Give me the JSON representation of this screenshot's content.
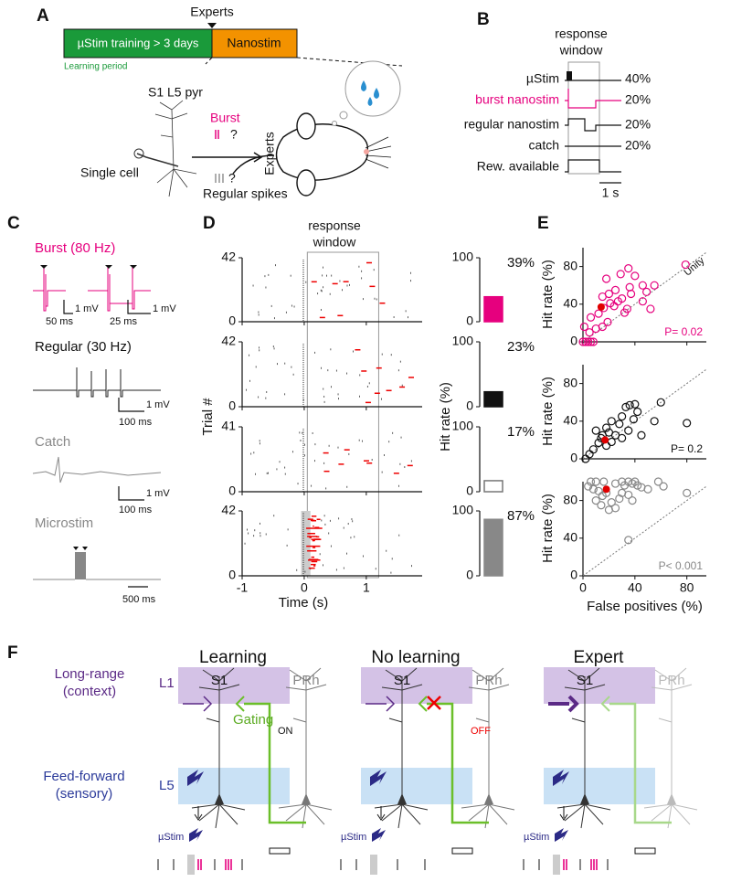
{
  "panels": [
    "A",
    "B",
    "C",
    "D",
    "E",
    "F"
  ],
  "panel_a": {
    "experts_top": "Experts",
    "training": "µStim training > 3 days",
    "nanostim": "Nanostim",
    "learning_period": "Learning period",
    "cell": "S1 L5 pyr",
    "single_cell": "Single cell",
    "burst": "Burst",
    "burst_q": "?",
    "experts_side": "Experts",
    "regular_q": "?",
    "regular": "Regular spikes"
  },
  "panel_b": {
    "title": [
      "response",
      "window"
    ],
    "rows": [
      {
        "label": "µStim",
        "pct": "40%"
      },
      {
        "label": "burst nanostim",
        "pct": "20%"
      },
      {
        "label": "regular nanostim",
        "pct": "20%"
      },
      {
        "label": "catch",
        "pct": "20%"
      },
      {
        "label": "Rew. available"
      }
    ],
    "scale": "1 s"
  },
  "panel_c": {
    "burst": "Burst (80 Hz)",
    "burst_v": "1 mV",
    "burst_t": "50 ms",
    "burst_t2": "25 ms",
    "burst_v2": "1 mV",
    "regular": "Regular (30 Hz)",
    "regular_v": "1 mV",
    "regular_t": "100 ms",
    "catch": "Catch",
    "catch_v": "1 mV",
    "catch_t": "100 ms",
    "microstim": "Microstim",
    "microstim_t": "500 ms"
  },
  "panel_d": {
    "window": [
      "response",
      "window"
    ],
    "ylabel": "Trial #",
    "xlabel": "Time (s)",
    "xlim": [
      -1,
      1.9
    ],
    "xticks": [
      -1,
      0,
      1
    ],
    "rasters": [
      {
        "yticks": [
          0,
          42
        ]
      },
      {
        "yticks": [
          0,
          42
        ]
      },
      {
        "yticks": [
          0,
          41
        ]
      },
      {
        "yticks": [
          0,
          42
        ]
      }
    ],
    "bar_ylabel": "Hit rate (%)"
  },
  "chart_data": [
    {
      "type": "bar",
      "values": [
        39
      ],
      "value_labels": [
        "39%"
      ],
      "color": "#e6007e",
      "filled": true,
      "ylim": [
        0,
        100
      ],
      "yticks": [
        0,
        100
      ]
    },
    {
      "type": "bar",
      "values": [
        23
      ],
      "value_labels": [
        "23%"
      ],
      "color": "#111111",
      "filled": true,
      "ylim": [
        0,
        100
      ],
      "yticks": [
        0,
        100
      ]
    },
    {
      "type": "bar",
      "values": [
        17
      ],
      "value_labels": [
        "17%"
      ],
      "color": "#777777",
      "filled": false,
      "ylim": [
        0,
        100
      ],
      "yticks": [
        0,
        100
      ]
    },
    {
      "type": "bar",
      "values": [
        87
      ],
      "value_labels": [
        "87%"
      ],
      "color": "#888888",
      "filled": true,
      "ylim": [
        0,
        100
      ],
      "yticks": [
        0,
        100
      ]
    },
    {
      "type": "scatter",
      "ylabel": "Hit rate (%)",
      "annotation": "P= 0.02",
      "unity_label": "Unity",
      "color": "#e6007e",
      "xlim": [
        0,
        95
      ],
      "ylim": [
        0,
        100
      ],
      "xticks": [
        0,
        40,
        80
      ],
      "yticks": [
        0,
        40,
        80
      ],
      "xtick_labels": false,
      "x": [
        1,
        4,
        6,
        8,
        0,
        2,
        5,
        10,
        15,
        19,
        6,
        12,
        16,
        24,
        21,
        27,
        15,
        20,
        25,
        30,
        34,
        32,
        37,
        36,
        18,
        29,
        35,
        40,
        46,
        49,
        55,
        46,
        52,
        79
      ],
      "values": [
        16,
        0,
        0,
        0,
        0,
        0,
        10,
        14,
        16,
        21,
        26,
        30,
        36,
        38,
        41,
        43,
        48,
        51,
        55,
        46,
        35,
        31,
        51,
        58,
        67,
        72,
        78,
        70,
        60,
        53,
        60,
        43,
        35,
        82
      ],
      "highlight": {
        "x": 14,
        "y": 37,
        "color": "#e00000"
      }
    },
    {
      "type": "scatter",
      "ylabel": "Hit rate (%)",
      "annotation": "P= 0.2",
      "color": "#111111",
      "xlim": [
        0,
        95
      ],
      "ylim": [
        0,
        100
      ],
      "xticks": [
        0,
        40,
        80
      ],
      "yticks": [
        0,
        40,
        80
      ],
      "xtick_labels": false,
      "x": [
        2,
        5,
        8,
        12,
        14,
        18,
        22,
        25,
        10,
        18,
        22,
        28,
        30,
        33,
        36,
        40,
        42,
        39,
        35,
        30,
        45,
        55,
        60,
        80,
        20,
        15
      ],
      "values": [
        0,
        5,
        10,
        17,
        22,
        14,
        18,
        25,
        30,
        33,
        40,
        37,
        45,
        55,
        57,
        58,
        50,
        42,
        30,
        22,
        25,
        40,
        60,
        38,
        28,
        25
      ],
      "highlight": {
        "x": 17,
        "y": 20,
        "color": "#e00000"
      }
    },
    {
      "type": "scatter",
      "ylabel": "Hit rate (%)",
      "annotation": "P< 0.001",
      "xlabel": "False positives (%)",
      "color": "#888888",
      "xlim": [
        0,
        95
      ],
      "ylim": [
        0,
        100
      ],
      "xticks": [
        0,
        40,
        80
      ],
      "yticks": [
        0,
        40,
        80
      ],
      "xtick_labels": true,
      "x": [
        4,
        8,
        12,
        15,
        18,
        10,
        14,
        20,
        25,
        22,
        28,
        30,
        32,
        35,
        38,
        40,
        42,
        45,
        35,
        30,
        38,
        50,
        58,
        62,
        80,
        35,
        25,
        6,
        10,
        16
      ],
      "values": [
        95,
        92,
        90,
        85,
        88,
        80,
        75,
        70,
        72,
        78,
        82,
        88,
        96,
        100,
        98,
        100,
        96,
        94,
        86,
        100,
        80,
        92,
        100,
        95,
        88,
        38,
        98,
        100,
        100,
        100
      ],
      "highlight": {
        "x": 18,
        "y": 92,
        "color": "#e00000"
      }
    }
  ],
  "panel_f": {
    "long_range": "Long-range",
    "context": "(context)",
    "l1": "L1",
    "feed_forward": "Feed-forward",
    "sensory": "(sensory)",
    "l5": "L5",
    "gating": "Gating",
    "on": "ON",
    "off": "OFF",
    "columns": [
      {
        "title": "Learning",
        "s1": "S1",
        "prh": "PRh",
        "ustim": "µStim"
      },
      {
        "title": "No learning",
        "s1": "S1",
        "prh": "PRh",
        "ustim": "µStim"
      },
      {
        "title": "Expert",
        "s1": "S1",
        "prh": "PRh",
        "ustim": "µStim"
      }
    ]
  }
}
